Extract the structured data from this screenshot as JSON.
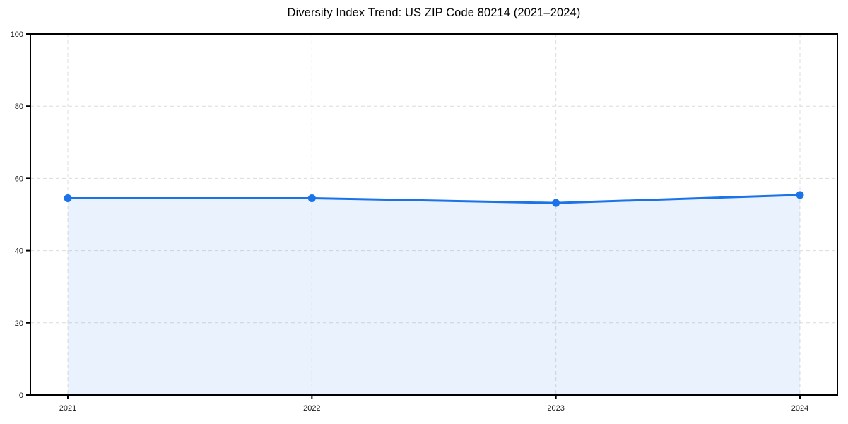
{
  "chart_data": {
    "type": "area",
    "title": "Diversity Index Trend: US ZIP Code 80214 (2021–2024)",
    "categories": [
      "2021",
      "2022",
      "2023",
      "2024"
    ],
    "values": [
      54.5,
      54.5,
      53.2,
      55.4
    ],
    "xlabel": "",
    "ylabel": "",
    "ylim": [
      0,
      100
    ],
    "yticks": [
      0,
      20,
      40,
      60,
      80,
      100
    ],
    "grid": true,
    "grid_style": "dashed",
    "legend": "none",
    "line_color": "#1a73e8",
    "marker_color": "#1a73e8",
    "fill_color": "#1a73e8",
    "fill_opacity": 0.09,
    "grid_color": "#dcdcdc",
    "axis_color": "#000000",
    "tick_label_color": "#1a1a1a",
    "title_color": "#000000"
  }
}
